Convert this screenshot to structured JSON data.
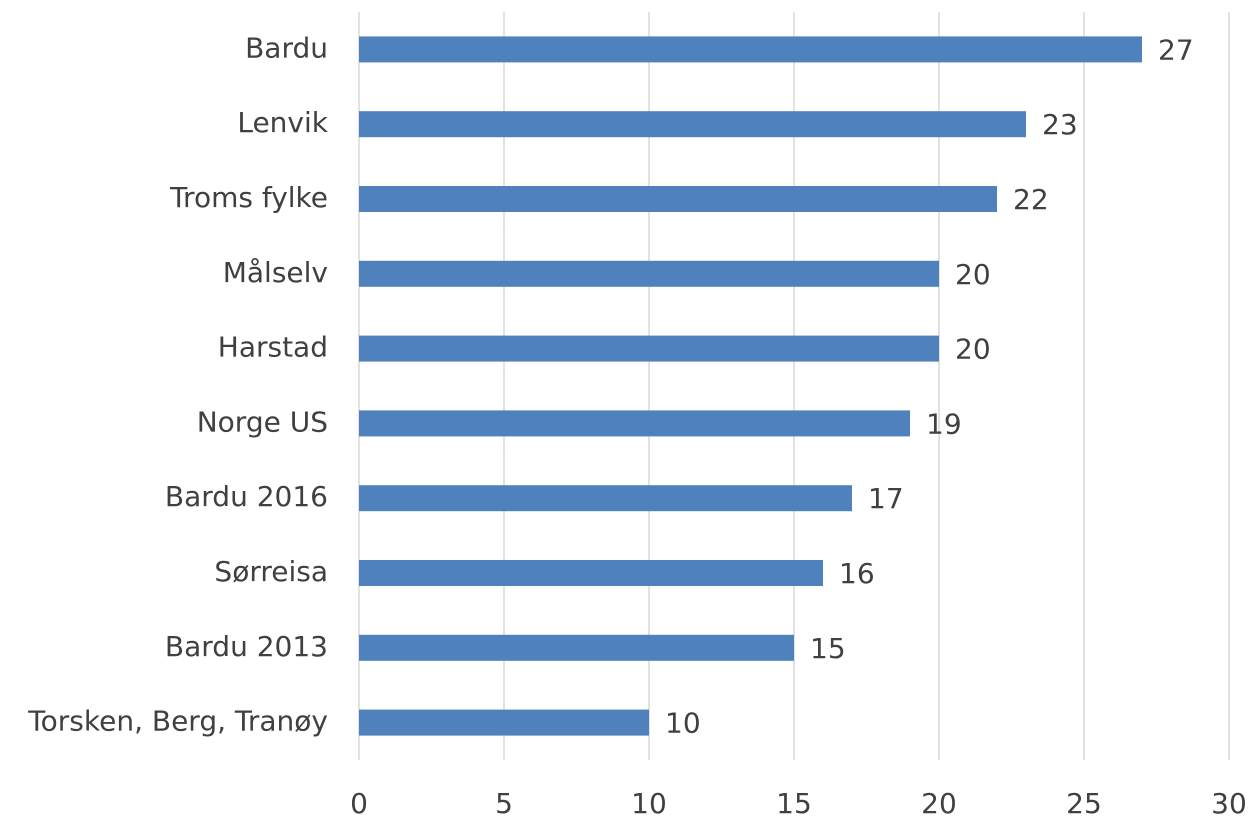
{
  "chart_data": {
    "type": "bar",
    "orientation": "horizontal",
    "categories": [
      "Bardu",
      "Lenvik",
      "Troms fylke",
      "Målselv",
      "Harstad",
      "Norge US",
      "Bardu 2016",
      "Sørreisa",
      "Bardu 2013",
      "Torsken, Berg, Tranøy"
    ],
    "values": [
      27,
      23,
      22,
      20,
      20,
      19,
      17,
      16,
      15,
      10
    ],
    "color": "#4f81bd",
    "xlim": [
      0,
      30
    ],
    "xticks": [
      0,
      5,
      10,
      15,
      20,
      25,
      30
    ],
    "grid": true
  }
}
